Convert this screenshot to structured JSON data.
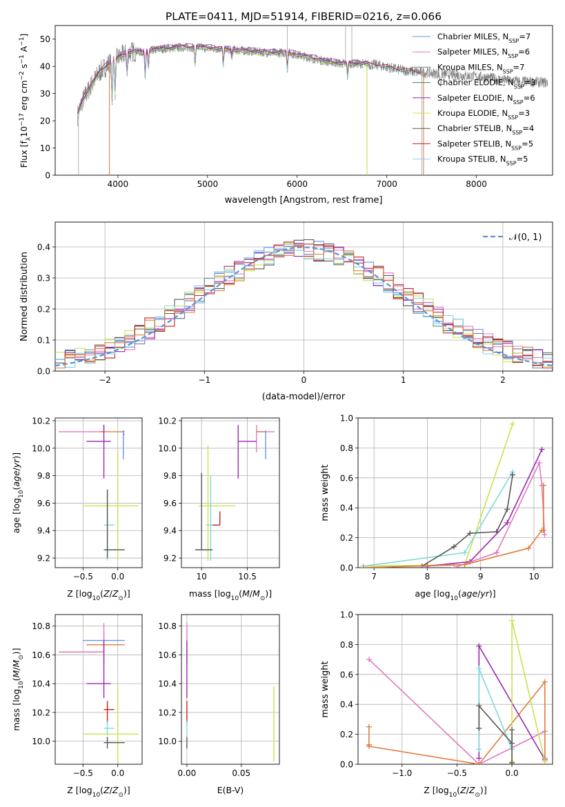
{
  "colors": {
    "chabrier_miles": "#6495ed",
    "salpeter_miles": "#e377c2",
    "kroupa_miles": "#708090",
    "chabrier_elodie": "#2e8b57",
    "salpeter_elodie": "#9c27b0",
    "kroupa_elodie": "#c8e34a",
    "chabrier_stelib": "#555555",
    "salpeter_stelib": "#c81e1e",
    "kroupa_stelib": "#87ceeb",
    "orange": "#e07b39",
    "lime": "#b8e046",
    "cyan": "#7fd8d8",
    "normal": "#5b8fd9",
    "grid": "#b0b0b0"
  },
  "chart_data": [
    {
      "id": "spectrum",
      "type": "line",
      "title": "PLATE=0411, MJD=51914, FIBERID=0216, z=0.066",
      "xlabel": "wavelength [Angstrom, rest frame]",
      "ylabel": "Flux [f_λ 10^-17 erg cm^-2 s^-1 A^-1]",
      "xlim": [
        3300,
        8850
      ],
      "ylim": [
        0,
        55
      ],
      "xticks": [
        4000,
        5000,
        6000,
        7000,
        8000
      ],
      "yticks": [
        0,
        10,
        20,
        30,
        40,
        50
      ],
      "grid": false,
      "legend_position": "top-right",
      "continuum": {
        "x": [
          3550,
          3600,
          3700,
          3800,
          3900,
          4000,
          4100,
          4200,
          4300,
          4400,
          4500,
          4700,
          4900,
          5100,
          5300,
          5500,
          5700,
          5900,
          6100,
          6300,
          6500,
          6700,
          6900,
          7100,
          7300,
          7500,
          7700,
          7900,
          8100,
          8300,
          8500,
          8800
        ],
        "y": [
          22,
          27,
          33,
          38,
          41,
          43,
          45,
          45.5,
          45,
          46,
          46.5,
          47,
          47,
          46.5,
          46,
          45.5,
          45,
          45,
          43.5,
          42,
          41,
          41,
          40.5,
          39,
          38,
          37.5,
          37,
          36.5,
          36,
          35,
          34.5,
          34
        ]
      },
      "series": [
        {
          "name": "Chabrier MILES, N_SSP=7",
          "label_main": "Chabrier MILES, N",
          "label_sub": "SSP",
          "label_end": "=7",
          "color_key": "chabrier_miles",
          "offset": 0.6
        },
        {
          "name": "Salpeter MILES, N_SSP=6",
          "label_main": "Salpeter MILES, N",
          "label_sub": "SSP",
          "label_end": "=6",
          "color_key": "salpeter_miles",
          "offset": -0.4
        },
        {
          "name": "Kroupa MILES, N_SSP=7",
          "label_main": "Kroupa MILES, N",
          "label_sub": "SSP",
          "label_end": "=7",
          "color_key": "kroupa_miles",
          "offset": 0.2
        },
        {
          "name": "Chabrier ELODIE, N_SSP=3",
          "label_main": "Chabrier ELODIE, N",
          "label_sub": "SSP",
          "label_end": "=3",
          "color_key": "chabrier_elodie",
          "offset": -0.2
        },
        {
          "name": "Salpeter ELODIE, N_SSP=6",
          "label_main": "Salpeter ELODIE, N",
          "label_sub": "SSP",
          "label_end": "=6",
          "color_key": "salpeter_elodie",
          "offset": 0.8
        },
        {
          "name": "Kroupa ELODIE, N_SSP=3",
          "label_main": "Kroupa ELODIE, N",
          "label_sub": "SSP",
          "label_end": "=3",
          "color_key": "kroupa_elodie",
          "offset": -0.7
        },
        {
          "name": "Chabrier STELIB, N_SSP=4",
          "label_main": "Chabrier STELIB, N",
          "label_sub": "SSP",
          "label_end": "=4",
          "color_key": "chabrier_stelib",
          "offset": 0.0
        },
        {
          "name": "Salpeter STELIB, N_SSP=5",
          "label_main": "Salpeter STELIB, N",
          "label_sub": "SSP",
          "label_end": "=5",
          "color_key": "salpeter_stelib",
          "offset": 0.4
        },
        {
          "name": "Kroupa STELIB, N_SSP=5",
          "label_main": "Kroupa STELIB, N",
          "label_sub": "SSP",
          "label_end": "=5",
          "color_key": "kroupa_stelib",
          "offset": -0.5
        }
      ]
    },
    {
      "id": "residuals",
      "type": "histogram",
      "xlabel": "(data-model)/error",
      "ylabel": "Normed distribution",
      "xlim": [
        -2.5,
        2.5
      ],
      "ylim": [
        0,
        0.48
      ],
      "xticks": [
        -2,
        -1,
        0,
        1,
        2
      ],
      "yticks": [
        0.0,
        0.1,
        0.2,
        0.3,
        0.4
      ],
      "grid": true,
      "bin_width": 0.1,
      "legend": "𝒩(0, 1)",
      "legend_position": "top-right",
      "hist_colors": [
        "chabrier_miles",
        "salpeter_miles",
        "kroupa_miles",
        "salpeter_elodie",
        "kroupa_elodie",
        "chabrier_stelib",
        "salpeter_stelib",
        "kroupa_stelib",
        "orange"
      ]
    },
    {
      "id": "age_vs_Z",
      "type": "errorbar",
      "xlabel": "Z [log10(Z/Z⊙)]",
      "ylabel": "age  [log10(age/yr)]",
      "xlim": [
        -0.9,
        0.35
      ],
      "ylim": [
        9.13,
        10.22
      ],
      "xticks": [
        -0.5,
        0.0
      ],
      "xticklabels": [
        "−0.5",
        "0.0"
      ],
      "yticks": [
        9.2,
        9.4,
        9.6,
        9.8,
        10.0,
        10.2
      ],
      "grid": true,
      "points": [
        {
          "color_key": "salpeter_miles",
          "x": -0.2,
          "xerr": [
            0.65,
            0.0
          ],
          "y": 10.12,
          "yerr": [
            0.0,
            0.05
          ]
        },
        {
          "color_key": "orange",
          "x": -0.15,
          "xerr": [
            0.1,
            0.25
          ],
          "y": 10.12,
          "yerr": [
            0.0,
            0.0
          ]
        },
        {
          "color_key": "chabrier_miles",
          "x": 0.08,
          "xerr": [
            0.0,
            0.02
          ],
          "y": 10.1,
          "yerr": [
            0.18,
            0.03
          ]
        },
        {
          "color_key": "salpeter_elodie",
          "x": -0.2,
          "xerr": [
            0.25,
            0.1
          ],
          "y": 10.05,
          "yerr": [
            0.27,
            0.12
          ]
        },
        {
          "color_key": "kroupa_elodie",
          "x": 0.0,
          "xerr": [
            0.5,
            0.3
          ],
          "y": 9.58,
          "yerr": [
            0.4,
            0.4
          ]
        },
        {
          "color_key": "cyan",
          "x": -0.15,
          "xerr": [
            0.05,
            0.1
          ],
          "y": 9.44,
          "yerr": [
            0.26,
            0.26
          ]
        },
        {
          "color_key": "chabrier_stelib",
          "x": -0.15,
          "xerr": [
            0.05,
            0.25
          ],
          "y": 9.26,
          "yerr": [
            0.06,
            0.44
          ]
        }
      ]
    },
    {
      "id": "age_vs_mass",
      "type": "errorbar",
      "xlabel": "mass [log10(M/M⊙)]",
      "xlim": [
        9.78,
        10.85
      ],
      "ylim": [
        9.13,
        10.22
      ],
      "xticks": [
        10.0,
        10.5
      ],
      "yticks": [
        9.2,
        9.4,
        9.6,
        9.8,
        10.0,
        10.2
      ],
      "grid": true,
      "points": [
        {
          "color_key": "salpeter_miles",
          "x": 10.6,
          "xerr": [
            0.0,
            0.2
          ],
          "y": 10.12,
          "yerr": [
            0.15,
            0.05
          ]
        },
        {
          "color_key": "orange",
          "x": 10.65,
          "xerr": [
            0.05,
            0.05
          ],
          "y": 10.12,
          "yerr": [
            0.0,
            0.0
          ]
        },
        {
          "color_key": "chabrier_miles",
          "x": 10.7,
          "xerr": [
            0.0,
            0.0
          ],
          "y": 10.1,
          "yerr": [
            0.18,
            0.03
          ]
        },
        {
          "color_key": "salpeter_elodie",
          "x": 10.4,
          "xerr": [
            0.0,
            0.2
          ],
          "y": 10.05,
          "yerr": [
            0.27,
            0.12
          ]
        },
        {
          "color_key": "kroupa_elodie",
          "x": 10.07,
          "xerr": [
            0.1,
            0.3
          ],
          "y": 9.58,
          "yerr": [
            0.4,
            0.44
          ]
        },
        {
          "color_key": "cyan",
          "x": 10.1,
          "xerr": [
            0.05,
            0.05
          ],
          "y": 9.44,
          "yerr": [
            0.26,
            0.36
          ]
        },
        {
          "color_key": "salpeter_stelib",
          "x": 10.2,
          "xerr": [
            0.08,
            0.0
          ],
          "y": 9.44,
          "yerr": [
            0.0,
            0.1
          ]
        },
        {
          "color_key": "chabrier_stelib",
          "x": 10.0,
          "xerr": [
            0.07,
            0.12
          ],
          "y": 9.26,
          "yerr": [
            0.0,
            0.56
          ]
        }
      ]
    },
    {
      "id": "weight_vs_age",
      "type": "line",
      "xlabel": "age  [log10(age/yr)]",
      "ylabel": "mass weight",
      "xlim": [
        6.7,
        10.35
      ],
      "ylim": [
        0,
        1.0
      ],
      "xticks": [
        7,
        8,
        9,
        10
      ],
      "yticks": [
        0.0,
        0.2,
        0.4,
        0.6,
        0.8,
        1.0
      ],
      "grid": true,
      "series": [
        {
          "color_key": "kroupa_elodie",
          "x": [
            6.8,
            8.7,
            9.6
          ],
          "y": [
            0.01,
            0.02,
            0.96
          ]
        },
        {
          "color_key": "cyan",
          "x": [
            6.8,
            8.7,
            9.6
          ],
          "y": [
            0.01,
            0.1,
            0.64
          ]
        },
        {
          "color_key": "chabrier_stelib",
          "x": [
            7.9,
            8.5,
            8.8,
            9.3,
            9.5,
            9.6
          ],
          "y": [
            0.01,
            0.14,
            0.23,
            0.24,
            0.39,
            0.62
          ]
        },
        {
          "color_key": "salpeter_elodie",
          "x": [
            8.0,
            8.8,
            9.5,
            10.15
          ],
          "y": [
            0.01,
            0.04,
            0.3,
            0.79
          ]
        },
        {
          "color_key": "salpeter_miles",
          "x": [
            8.5,
            9.3,
            10.1,
            10.15,
            10.2
          ],
          "y": [
            0.0,
            0.1,
            0.7,
            0.55,
            0.22
          ]
        },
        {
          "color_key": "orange",
          "x": [
            6.8,
            8.7,
            9.9,
            10.15,
            10.18,
            10.18
          ],
          "y": [
            0.0,
            0.02,
            0.13,
            0.25,
            0.25,
            0.55
          ]
        }
      ]
    },
    {
      "id": "mass_vs_Z",
      "type": "errorbar",
      "xlabel": "Z [log10(Z/Z⊙)]",
      "ylabel": "mass [log10(M/M⊙)]",
      "xlim": [
        -0.9,
        0.35
      ],
      "ylim": [
        9.84,
        10.88
      ],
      "xticks": [
        -0.5,
        0.0
      ],
      "xticklabels": [
        "−0.5",
        "0.0"
      ],
      "yticks": [
        10.0,
        10.2,
        10.4,
        10.6,
        10.8
      ],
      "grid": true,
      "points": [
        {
          "color_key": "chabrier_miles",
          "x": -0.2,
          "xerr": [
            0.3,
            0.3
          ],
          "y": 10.7,
          "yerr": [
            0.0,
            0.06
          ]
        },
        {
          "color_key": "orange",
          "x": -0.2,
          "xerr": [
            0.25,
            0.3
          ],
          "y": 10.67,
          "yerr": [
            0.0,
            0.0
          ]
        },
        {
          "color_key": "salpeter_miles",
          "x": -0.2,
          "xerr": [
            0.65,
            0.0
          ],
          "y": 10.62,
          "yerr": [
            0.08,
            0.2
          ]
        },
        {
          "color_key": "salpeter_elodie",
          "x": -0.2,
          "xerr": [
            0.25,
            0.1
          ],
          "y": 10.4,
          "yerr": [
            0.1,
            0.3
          ]
        },
        {
          "color_key": "salpeter_stelib",
          "x": -0.15,
          "xerr": [
            0.05,
            0.1
          ],
          "y": 10.22,
          "yerr": [
            0.1,
            0.06
          ]
        },
        {
          "color_key": "cyan",
          "x": -0.15,
          "xerr": [
            0.05,
            0.1
          ],
          "y": 10.09,
          "yerr": [
            0.05,
            0.05
          ]
        },
        {
          "color_key": "kroupa_elodie",
          "x": 0.0,
          "xerr": [
            0.5,
            0.3
          ],
          "y": 10.05,
          "yerr": [
            0.2,
            0.34
          ]
        },
        {
          "color_key": "chabrier_stelib",
          "x": -0.15,
          "xerr": [
            0.05,
            0.25
          ],
          "y": 9.99,
          "yerr": [
            0.04,
            0.04
          ]
        }
      ]
    },
    {
      "id": "mass_vs_ebv",
      "type": "errorbar",
      "xlabel": "E(B-V)",
      "xlim": [
        -0.005,
        0.085
      ],
      "ylim": [
        9.84,
        10.88
      ],
      "xticks": [
        0.0,
        0.05
      ],
      "xticklabels": [
        "0.00",
        "0.05"
      ],
      "yticks": [
        10.0,
        10.2,
        10.4,
        10.6,
        10.8
      ],
      "grid": true,
      "points": [
        {
          "color_key": "salpeter_miles",
          "x": 0.0,
          "xerr": [
            0,
            0
          ],
          "y": 10.62,
          "yerr": [
            0.08,
            0.2
          ]
        },
        {
          "color_key": "salpeter_elodie",
          "x": 0.0,
          "xerr": [
            0,
            0
          ],
          "y": 10.4,
          "yerr": [
            0.1,
            0.3
          ]
        },
        {
          "color_key": "salpeter_stelib",
          "x": 0.0,
          "xerr": [
            0,
            0
          ],
          "y": 10.22,
          "yerr": [
            0.1,
            0.06
          ]
        },
        {
          "color_key": "cyan",
          "x": 0.0,
          "xerr": [
            0,
            0
          ],
          "y": 10.09,
          "yerr": [
            0.05,
            0.05
          ]
        },
        {
          "color_key": "chabrier_stelib",
          "x": 0.0,
          "xerr": [
            0,
            0
          ],
          "y": 9.99,
          "yerr": [
            0.04,
            0.04
          ]
        },
        {
          "color_key": "kroupa_elodie",
          "x": 0.08,
          "xerr": [
            0,
            0
          ],
          "y": 10.12,
          "yerr": [
            0.26,
            0.26
          ]
        }
      ]
    },
    {
      "id": "weight_vs_Z",
      "type": "line",
      "xlabel": "Z [log10(Z/Z⊙)]",
      "ylabel": "mass weight",
      "xlim": [
        -1.4,
        0.37
      ],
      "ylim": [
        0,
        1.0
      ],
      "xticks": [
        -1.0,
        -0.5,
        0.0
      ],
      "xticklabels": [
        "−1.0",
        "−0.5",
        "0.0"
      ],
      "yticks": [
        0.0,
        0.2,
        0.4,
        0.6,
        0.8,
        1.0
      ],
      "grid": true,
      "series": [
        {
          "color_key": "salpeter_miles",
          "x": [
            -1.3,
            -0.3,
            0.3,
            0.3
          ],
          "y": [
            0.7,
            0.0,
            0.22,
            0.04
          ]
        },
        {
          "color_key": "orange",
          "x": [
            -1.3,
            -1.3,
            -1.3,
            -0.3,
            0.3,
            0.3
          ],
          "y": [
            0.25,
            0.13,
            0.12,
            0.0,
            0.55,
            0.02
          ]
        },
        {
          "color_key": "salpeter_elodie",
          "x": [
            -0.3,
            -0.3,
            0.3
          ],
          "y": [
            0.04,
            0.79,
            0.03
          ]
        },
        {
          "color_key": "kroupa_elodie",
          "x": [
            0.0,
            0.0,
            0.3
          ],
          "y": [
            0.02,
            0.96,
            0.02
          ]
        },
        {
          "color_key": "cyan",
          "x": [
            -0.3,
            -0.3,
            0.0
          ],
          "y": [
            0.1,
            0.64,
            0.1
          ]
        },
        {
          "color_key": "chabrier_stelib",
          "x": [
            -0.3,
            -0.3,
            0.0,
            0.0,
            0.0
          ],
          "y": [
            0.24,
            0.39,
            0.14,
            0.23,
            0.01
          ]
        }
      ]
    }
  ]
}
